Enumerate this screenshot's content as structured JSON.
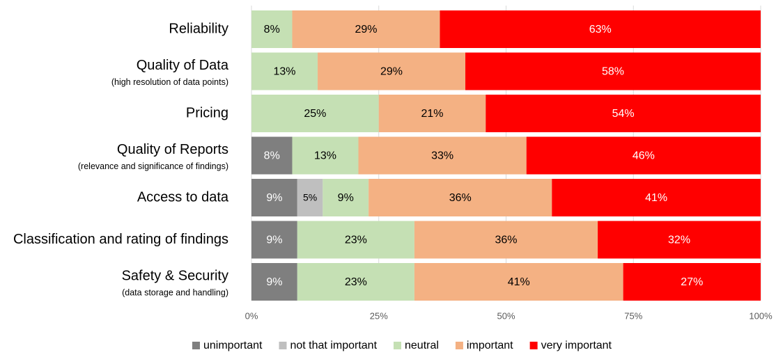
{
  "chart_data": {
    "type": "stacked-bar-horizontal",
    "categories": [
      "Reliability",
      "Quality of Data",
      "Pricing",
      "Quality of Reports",
      "Access to data",
      "Classification and rating of findings",
      "Safety & Security"
    ],
    "category_subtitles": [
      null,
      "(high resolution of data points)",
      null,
      "(relevance and significance of findings)",
      null,
      null,
      "(data storage and handling)"
    ],
    "series": [
      {
        "name": "unimportant",
        "color": "#7f7f7f",
        "label_color": "#ffffff",
        "values": [
          null,
          null,
          null,
          8,
          9,
          9,
          9
        ],
        "value_labels": [
          null,
          null,
          null,
          "8%",
          "9%",
          "9%",
          "9%"
        ]
      },
      {
        "name": "not that important",
        "color": "#bfbfbf",
        "label_color": "#000000",
        "values": [
          null,
          null,
          null,
          null,
          5,
          null,
          null
        ],
        "value_labels": [
          null,
          null,
          null,
          null,
          "5%",
          null,
          null
        ]
      },
      {
        "name": "neutral",
        "color": "#c5e0b4",
        "label_color": "#000000",
        "values": [
          8,
          13,
          25,
          13,
          9,
          23,
          23
        ],
        "value_labels": [
          "8%",
          "13%",
          "25%",
          "13%",
          "9%",
          "23%",
          "23%"
        ]
      },
      {
        "name": "important",
        "color": "#f4b183",
        "label_color": "#000000",
        "values": [
          29,
          29,
          21,
          33,
          36,
          36,
          41
        ],
        "value_labels": [
          "29%",
          "29%",
          "21%",
          "33%",
          "36%",
          "36%",
          "41%"
        ]
      },
      {
        "name": "very important",
        "color": "#ff0000",
        "label_color": "#ffffff",
        "values": [
          63,
          58,
          54,
          46,
          41,
          32,
          27
        ],
        "value_labels": [
          "63%",
          "58%",
          "54%",
          "46%",
          "41%",
          "32%",
          "27%"
        ]
      }
    ],
    "xlim": [
      0,
      100
    ],
    "xticks": [
      {
        "value": 0,
        "label": "0%"
      },
      {
        "value": 25,
        "label": "25%"
      },
      {
        "value": 50,
        "label": "50%"
      },
      {
        "value": 75,
        "label": "75%"
      },
      {
        "value": 100,
        "label": "100%"
      }
    ],
    "grid": true,
    "legend": "bottom"
  }
}
